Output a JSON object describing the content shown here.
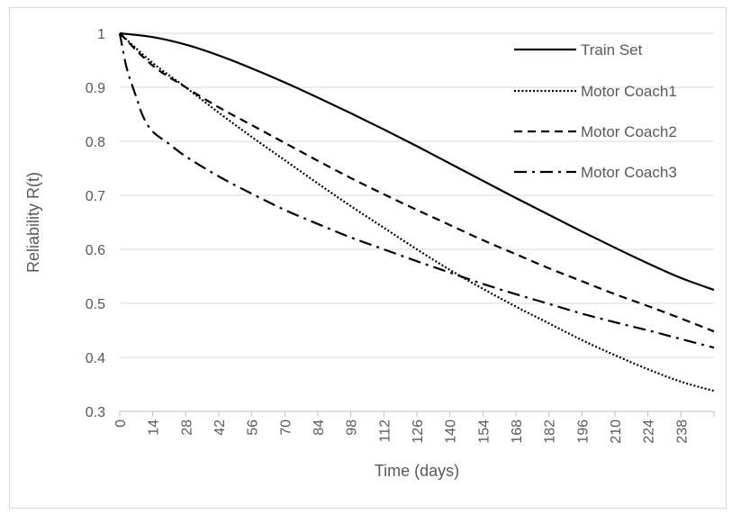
{
  "chart_data": {
    "type": "line",
    "title": "",
    "xlabel": "Time (days)",
    "ylabel": "Reliability R(t)",
    "xlim": [
      0,
      252
    ],
    "ylim": [
      0.3,
      1.0
    ],
    "x_ticks": [
      0,
      14,
      28,
      42,
      56,
      70,
      84,
      98,
      112,
      126,
      140,
      154,
      168,
      182,
      196,
      210,
      224,
      238
    ],
    "y_ticks": [
      0.3,
      0.4,
      0.5,
      0.6,
      0.7,
      0.8,
      0.9,
      1
    ],
    "y_tick_labels": [
      "0.3",
      "0.4",
      "0.5",
      "0.6",
      "0.7",
      "0.8",
      "0.9",
      "1"
    ],
    "grid": "horizontal",
    "legend_position": "top-right",
    "series": [
      {
        "name": "Train Set",
        "style": "solid",
        "x": [
          0,
          14,
          28,
          42,
          56,
          70,
          84,
          98,
          112,
          126,
          140,
          154,
          168,
          182,
          196,
          210,
          224,
          238,
          252
        ],
        "values": [
          1.0,
          0.993,
          0.979,
          0.959,
          0.935,
          0.909,
          0.881,
          0.852,
          0.822,
          0.791,
          0.759,
          0.727,
          0.695,
          0.664,
          0.633,
          0.603,
          0.574,
          0.547,
          0.525
        ]
      },
      {
        "name": "Motor Coach1",
        "style": "dotted",
        "x": [
          0,
          14,
          28,
          42,
          56,
          70,
          84,
          98,
          112,
          126,
          140,
          154,
          168,
          182,
          196,
          210,
          224,
          238,
          252
        ],
        "values": [
          1.0,
          0.945,
          0.9,
          0.853,
          0.808,
          0.765,
          0.722,
          0.68,
          0.64,
          0.6,
          0.562,
          0.527,
          0.494,
          0.463,
          0.432,
          0.404,
          0.378,
          0.355,
          0.338
        ]
      },
      {
        "name": "Motor Coach2",
        "style": "dashed",
        "x": [
          0,
          14,
          28,
          42,
          56,
          70,
          84,
          98,
          112,
          126,
          140,
          154,
          168,
          182,
          196,
          210,
          224,
          238,
          252
        ],
        "values": [
          1.0,
          0.94,
          0.9,
          0.863,
          0.83,
          0.797,
          0.764,
          0.732,
          0.702,
          0.673,
          0.645,
          0.617,
          0.591,
          0.565,
          0.541,
          0.517,
          0.495,
          0.472,
          0.448
        ]
      },
      {
        "name": "Motor Coach3",
        "style": "dash-dot",
        "x": [
          0,
          3,
          7,
          10,
          14,
          21,
          28,
          42,
          56,
          70,
          84,
          98,
          112,
          126,
          140,
          154,
          168,
          182,
          196,
          210,
          224,
          238,
          252
        ],
        "values": [
          1.0,
          0.935,
          0.882,
          0.845,
          0.818,
          0.795,
          0.772,
          0.735,
          0.703,
          0.673,
          0.647,
          0.622,
          0.6,
          0.578,
          0.557,
          0.536,
          0.517,
          0.499,
          0.481,
          0.465,
          0.45,
          0.434,
          0.418
        ]
      }
    ],
    "colors": {
      "line": "#000000",
      "text": "#595959",
      "grid": "#d9d9d9",
      "axis": "#bfbfbf"
    }
  }
}
